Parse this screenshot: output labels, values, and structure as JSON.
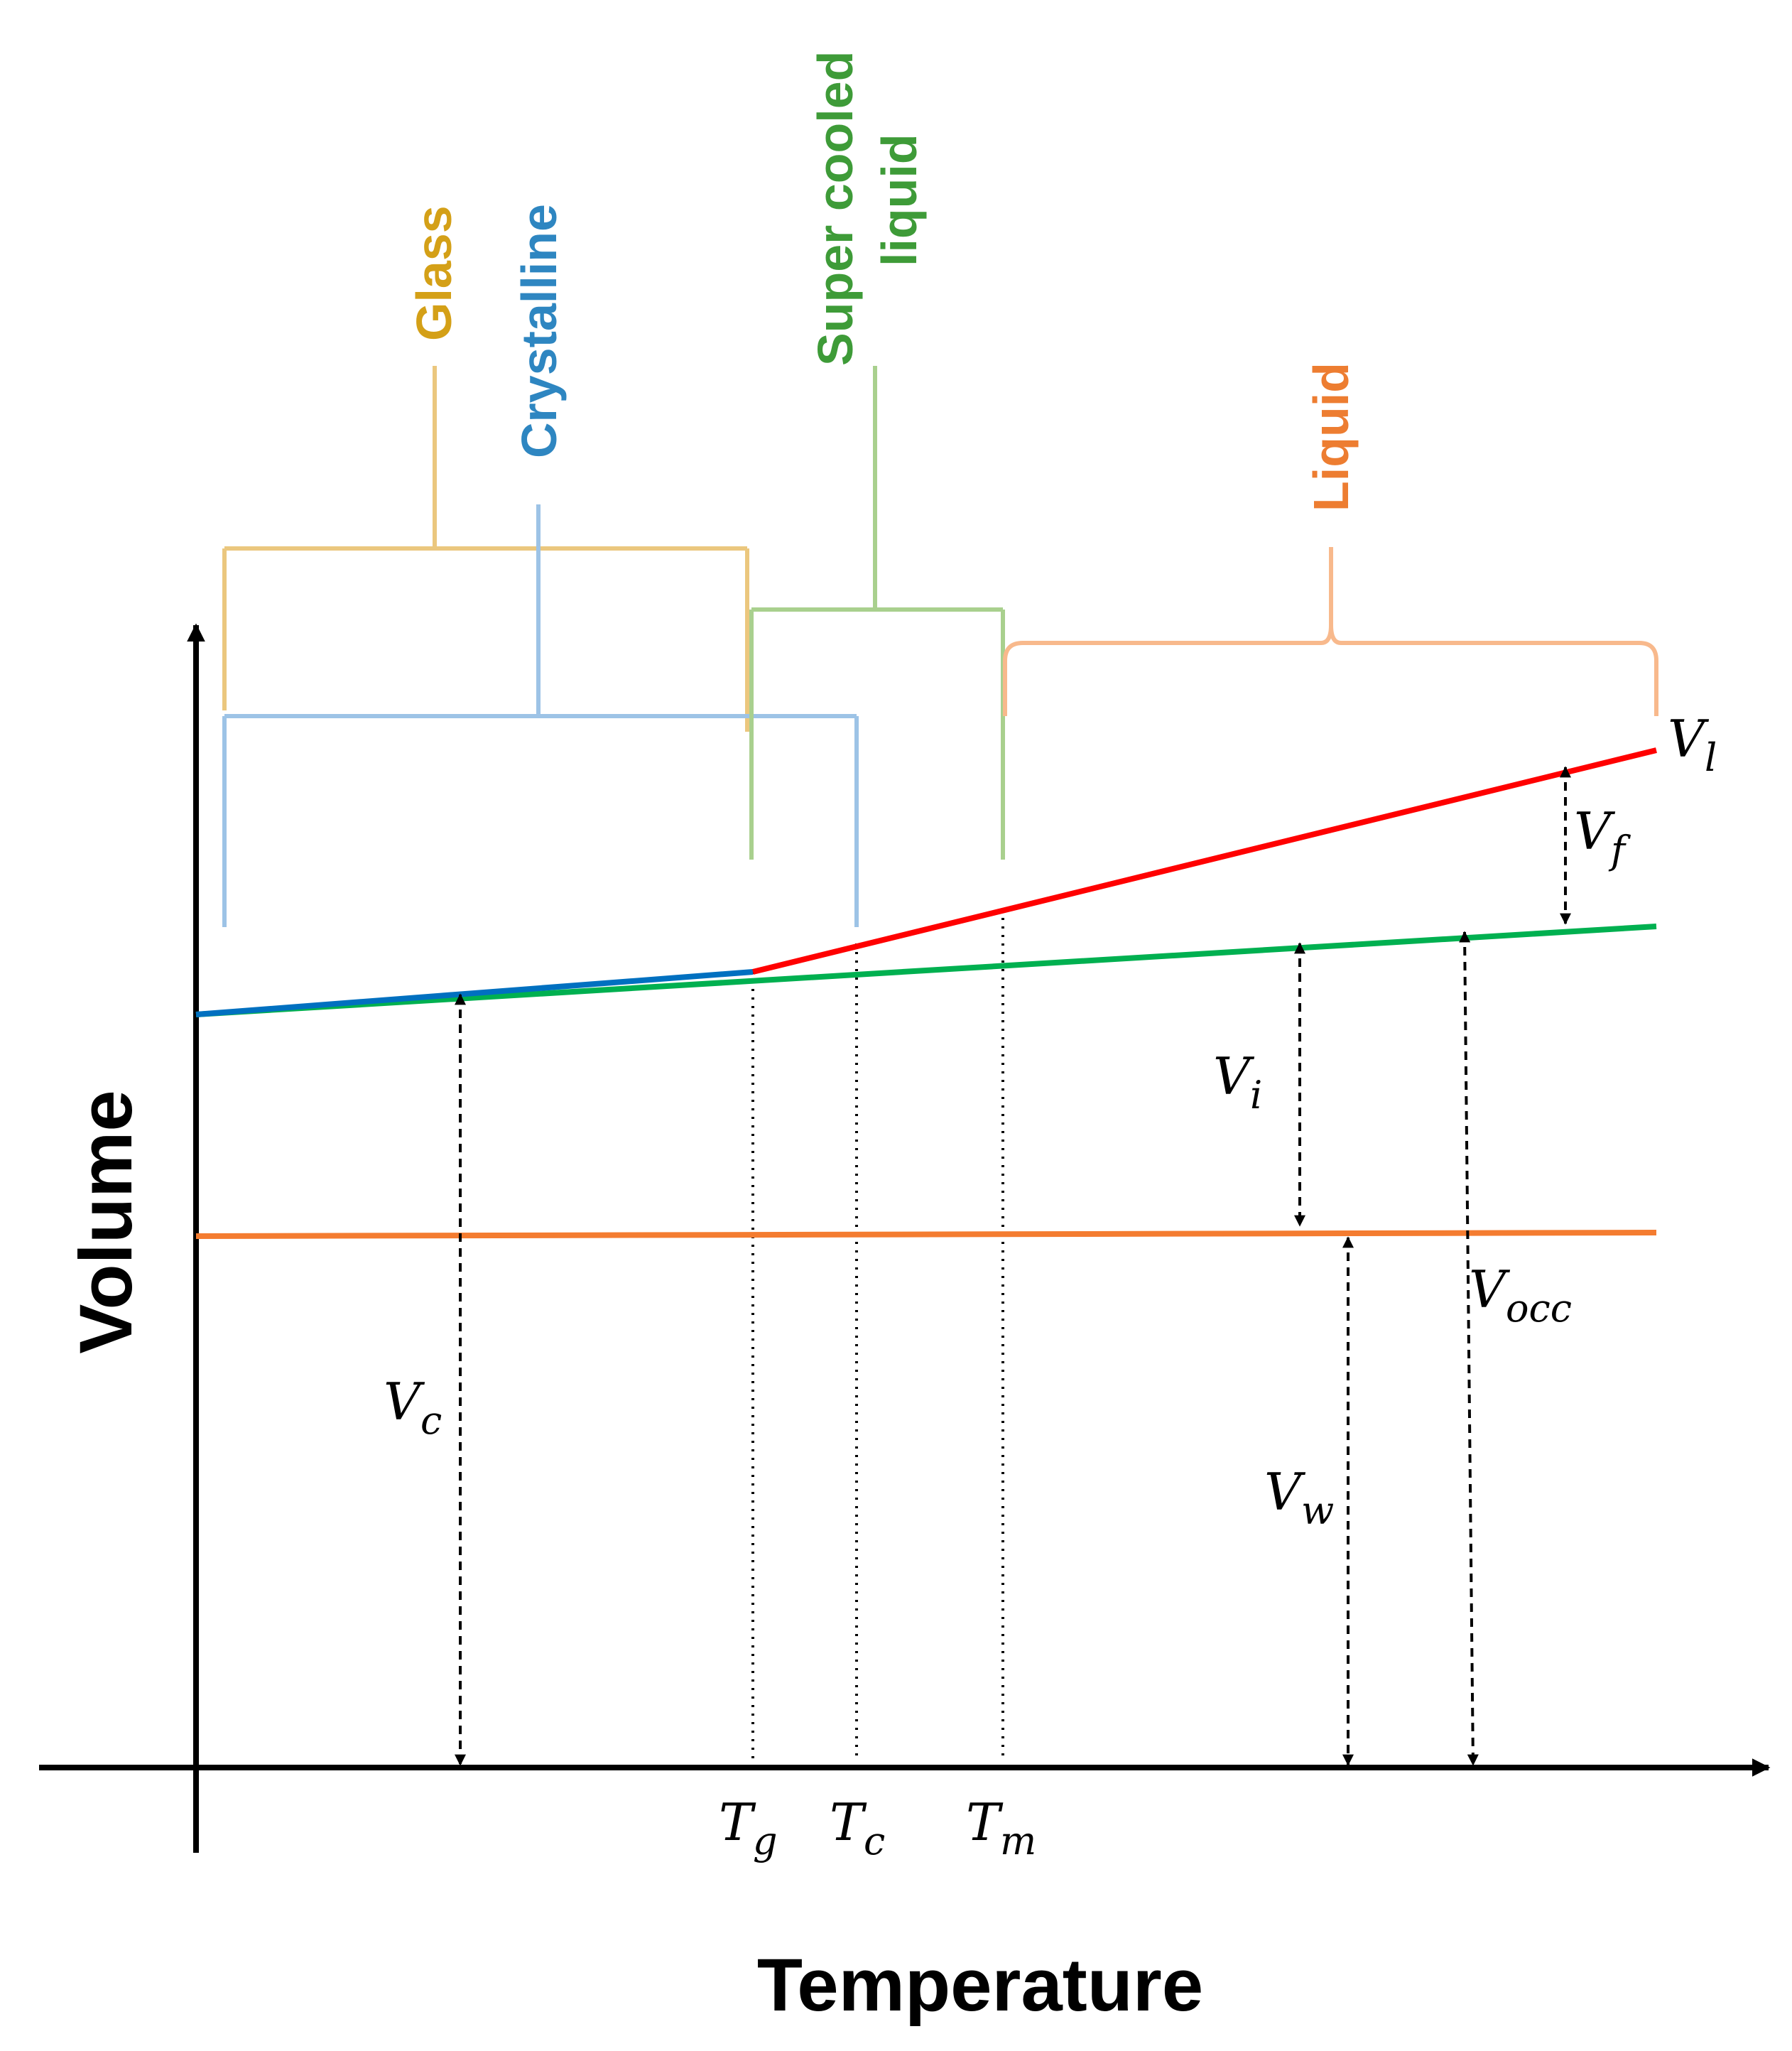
{
  "axes": {
    "x_label": "Temperature",
    "y_label": "Volume"
  },
  "regions": {
    "glass": {
      "label": "Glass",
      "color": "#D4A017"
    },
    "crystalline": {
      "label": "Crystalline",
      "color": "#2E86C1"
    },
    "supercooled": {
      "label_line1": "Super cooled",
      "label_line2": "liquid",
      "color": "#3E9B38"
    },
    "liquid": {
      "label": "Liquid",
      "color": "#ED7D31"
    }
  },
  "temperatures": {
    "tg": {
      "base": "T",
      "sub": "g"
    },
    "tc": {
      "base": "T",
      "sub": "c"
    },
    "tm": {
      "base": "T",
      "sub": "m"
    }
  },
  "volumes": {
    "vl": {
      "base": "V",
      "sub": "l"
    },
    "vf": {
      "base": "V",
      "sub": "f"
    },
    "vi": {
      "base": "V",
      "sub": "i"
    },
    "vc": {
      "base": "V",
      "sub": "c"
    },
    "vw": {
      "base": "V",
      "sub": "w"
    },
    "vocc": {
      "base": "V",
      "sub": "occ"
    }
  },
  "line_colors": {
    "liquid_volume": "#FF0000",
    "occupied_volume": "#00B050",
    "crystal_segment": "#0070C0",
    "van_der_waals_volume": "#F47C30"
  }
}
